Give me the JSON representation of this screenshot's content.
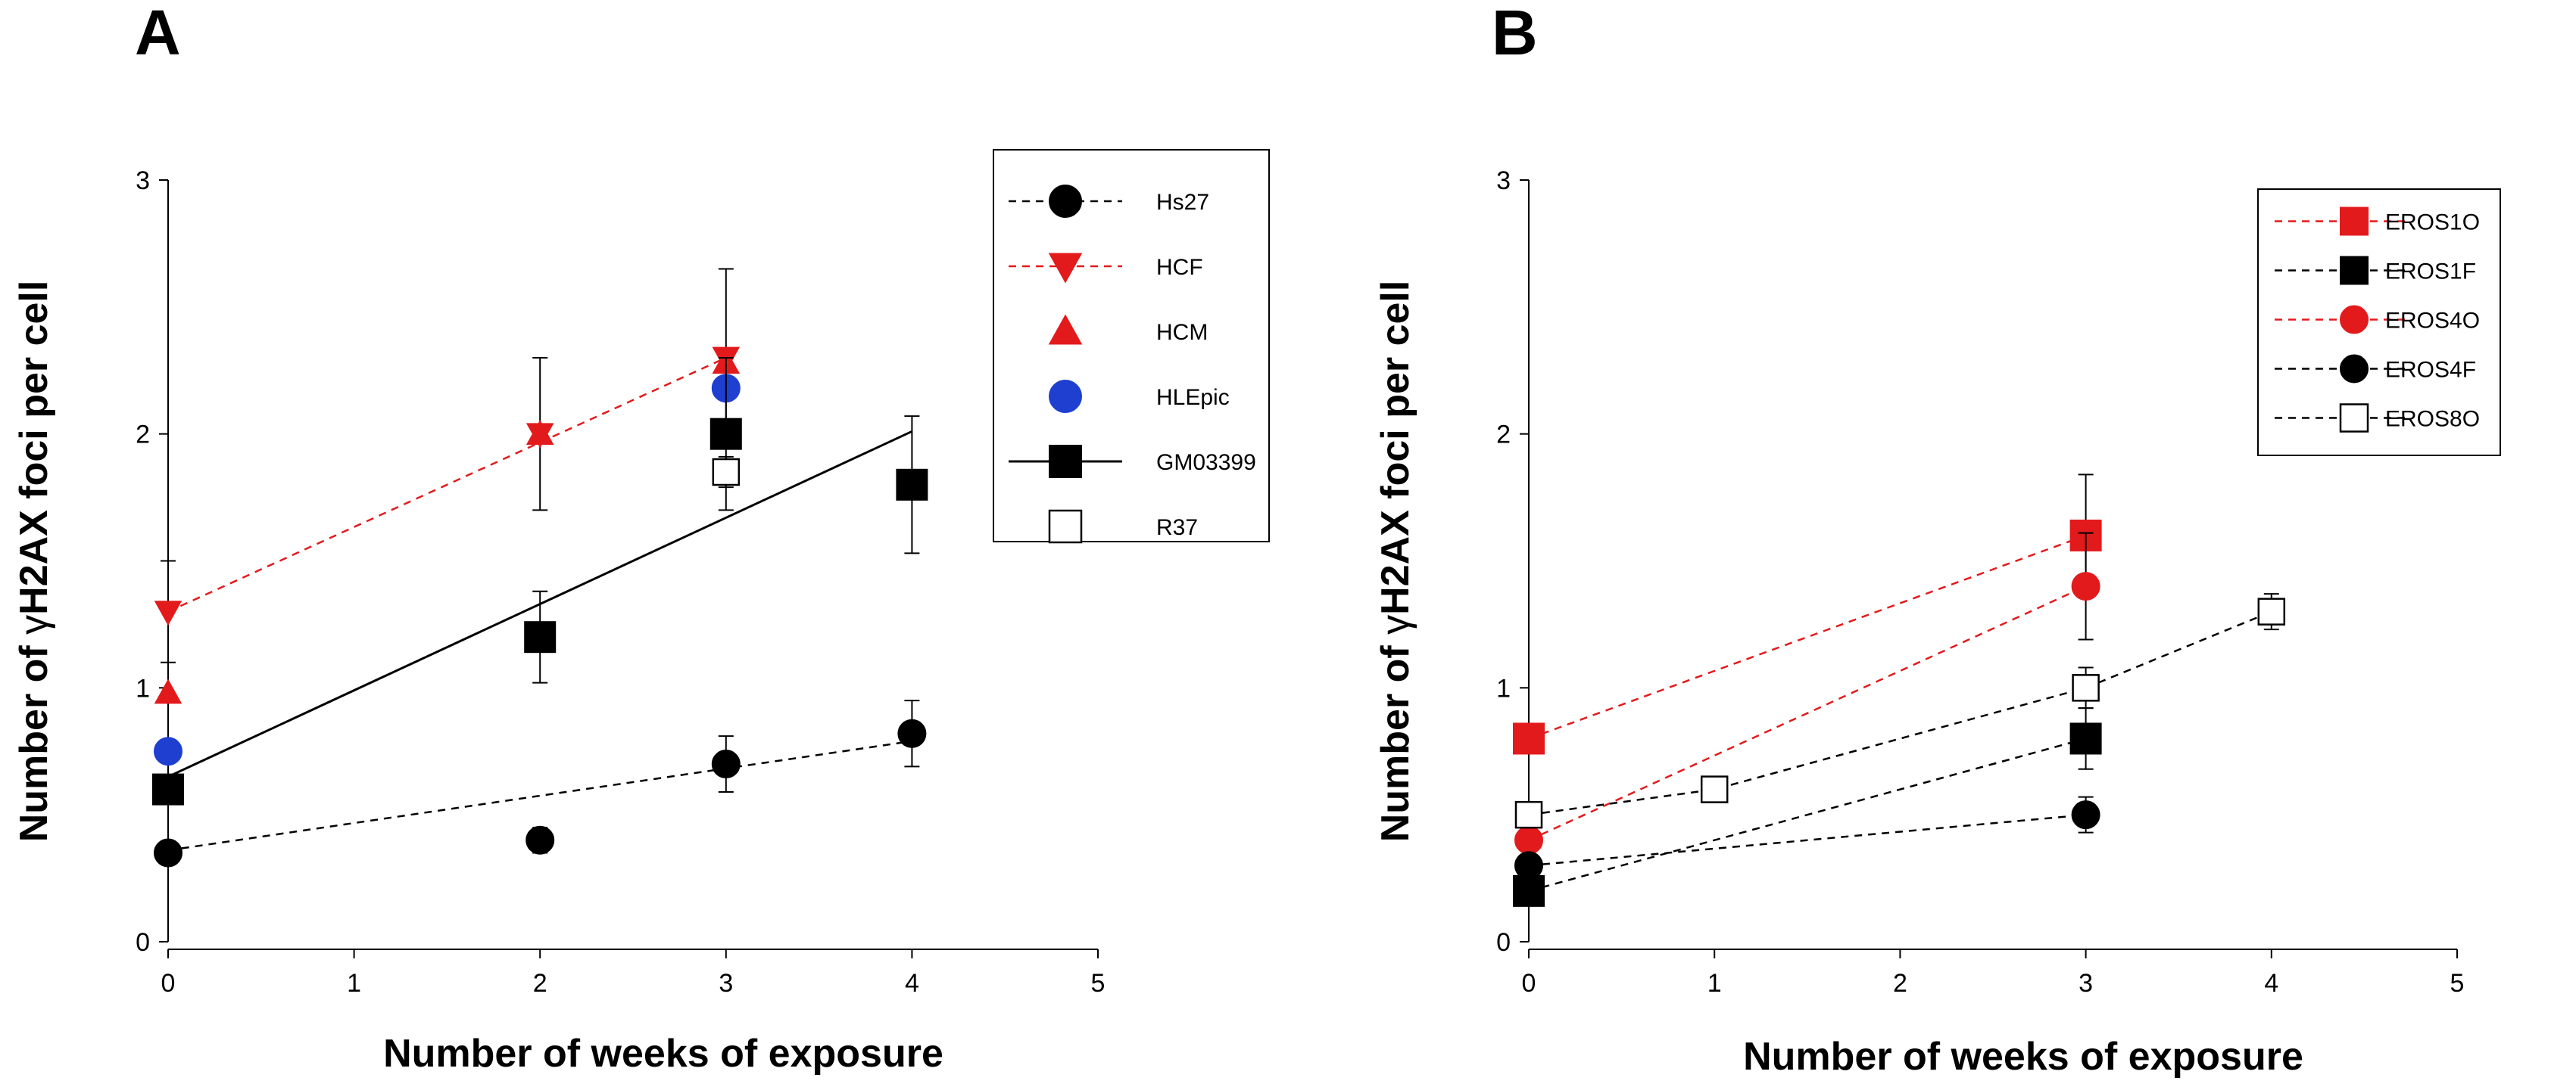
{
  "figure": {
    "panel_labels": [
      "A",
      "B"
    ]
  },
  "chart_data": [
    {
      "panel": "A",
      "type": "scatter",
      "title": "",
      "xlabel": "Number of weeks of exposure",
      "ylabel_prefix": "Number of ",
      "ylabel_symbol": "γ",
      "ylabel_suffix": "H2AX foci per cell",
      "xlim": [
        0,
        5
      ],
      "ylim": [
        0,
        3
      ],
      "xticks": [
        0,
        1,
        2,
        3,
        4,
        5
      ],
      "yticks": [
        0,
        1,
        2,
        3
      ],
      "legend_position": "top-right",
      "series": [
        {
          "name": "Hs27",
          "marker": "circle",
          "color": "#000000",
          "fill": true,
          "line": "dashed",
          "line_color": "#000000",
          "points": [
            {
              "x": 0,
              "y": 0.35,
              "err": 0
            },
            {
              "x": 2,
              "y": 0.4,
              "err": 0.05
            },
            {
              "x": 3,
              "y": 0.7,
              "err": 0.11
            },
            {
              "x": 4,
              "y": 0.82,
              "err": 0.13
            }
          ],
          "fit": [
            {
              "x": 0,
              "y": 0.36
            },
            {
              "x": 4,
              "y": 0.79
            }
          ]
        },
        {
          "name": "HCF",
          "marker": "triangle-down",
          "color": "#e31a1c",
          "fill": true,
          "line": "dashed",
          "line_color": "#e31a1c",
          "points": [
            {
              "x": 0,
              "y": 1.3,
              "err": 0.2
            },
            {
              "x": 2,
              "y": 2.0,
              "err": 0.3
            },
            {
              "x": 3,
              "y": 2.3,
              "err": 0.35
            }
          ],
          "fit": [
            {
              "x": 0,
              "y": 1.3
            },
            {
              "x": 3,
              "y": 2.3
            }
          ]
        },
        {
          "name": "HCM",
          "marker": "triangle-up",
          "color": "#e31a1c",
          "fill": true,
          "line": "none",
          "points": [
            {
              "x": 0,
              "y": 0.98,
              "err": 0
            },
            {
              "x": 2,
              "y": 2.0,
              "err": 0
            },
            {
              "x": 3,
              "y": 2.28,
              "err": 0
            }
          ]
        },
        {
          "name": "HLEpic",
          "marker": "circle",
          "color": "#1f3fd1",
          "fill": true,
          "line": "none",
          "points": [
            {
              "x": 0,
              "y": 0.75,
              "err": 0
            },
            {
              "x": 3,
              "y": 2.18,
              "err": 0
            }
          ]
        },
        {
          "name": "GM03399",
          "marker": "square",
          "color": "#000000",
          "fill": true,
          "line": "solid",
          "line_color": "#000000",
          "points": [
            {
              "x": 0,
              "y": 0.6,
              "err": 0
            },
            {
              "x": 2,
              "y": 1.2,
              "err": 0.18
            },
            {
              "x": 3,
              "y": 2.0,
              "err": 0.3
            },
            {
              "x": 4,
              "y": 1.8,
              "err": 0.27
            }
          ],
          "fit": [
            {
              "x": 0,
              "y": 0.65
            },
            {
              "x": 4,
              "y": 2.01
            }
          ]
        },
        {
          "name": "R37",
          "marker": "square",
          "color": "#000000",
          "fill": false,
          "line": "none",
          "points": [
            {
              "x": 3,
              "y": 1.85,
              "err": 0.06
            }
          ]
        }
      ]
    },
    {
      "panel": "B",
      "type": "scatter",
      "title": "",
      "xlabel": "Number of weeks of exposure",
      "ylabel_prefix": "Number of ",
      "ylabel_symbol": "γ",
      "ylabel_suffix": "H2AX foci per cell",
      "xlim": [
        0,
        5
      ],
      "ylim": [
        0,
        3
      ],
      "xticks": [
        0,
        1,
        2,
        3,
        4,
        5
      ],
      "yticks": [
        0,
        1,
        2,
        3
      ],
      "legend_position": "top-right",
      "series": [
        {
          "name": "EROS1O",
          "marker": "square",
          "color": "#e31a1c",
          "fill": true,
          "line": "dashed",
          "line_color": "#e31a1c",
          "points": [
            {
              "x": 0,
              "y": 0.8,
              "err": 0
            },
            {
              "x": 3,
              "y": 1.6,
              "err": 0.24
            }
          ]
        },
        {
          "name": "EROS1F",
          "marker": "square",
          "color": "#000000",
          "fill": true,
          "line": "dashed",
          "line_color": "#000000",
          "points": [
            {
              "x": 0,
              "y": 0.2,
              "err": 0
            },
            {
              "x": 3,
              "y": 0.8,
              "err": 0.12
            }
          ]
        },
        {
          "name": "EROS4O",
          "marker": "circle",
          "color": "#e31a1c",
          "fill": true,
          "line": "dashed",
          "line_color": "#e31a1c",
          "points": [
            {
              "x": 0,
              "y": 0.4,
              "err": 0
            },
            {
              "x": 3,
              "y": 1.4,
              "err": 0.21
            }
          ]
        },
        {
          "name": "EROS4F",
          "marker": "circle",
          "color": "#000000",
          "fill": true,
          "line": "dashed",
          "line_color": "#000000",
          "points": [
            {
              "x": 0,
              "y": 0.3,
              "err": 0
            },
            {
              "x": 3,
              "y": 0.5,
              "err": 0.07
            }
          ]
        },
        {
          "name": "EROS8O",
          "marker": "square",
          "color": "#000000",
          "fill": false,
          "line": "dashed",
          "line_color": "#000000",
          "points": [
            {
              "x": 0,
              "y": 0.5,
              "err": 0
            },
            {
              "x": 1,
              "y": 0.6,
              "err": 0.05
            },
            {
              "x": 3,
              "y": 1.0,
              "err": 0.08
            },
            {
              "x": 4,
              "y": 1.3,
              "err": 0.07
            }
          ]
        }
      ]
    }
  ]
}
